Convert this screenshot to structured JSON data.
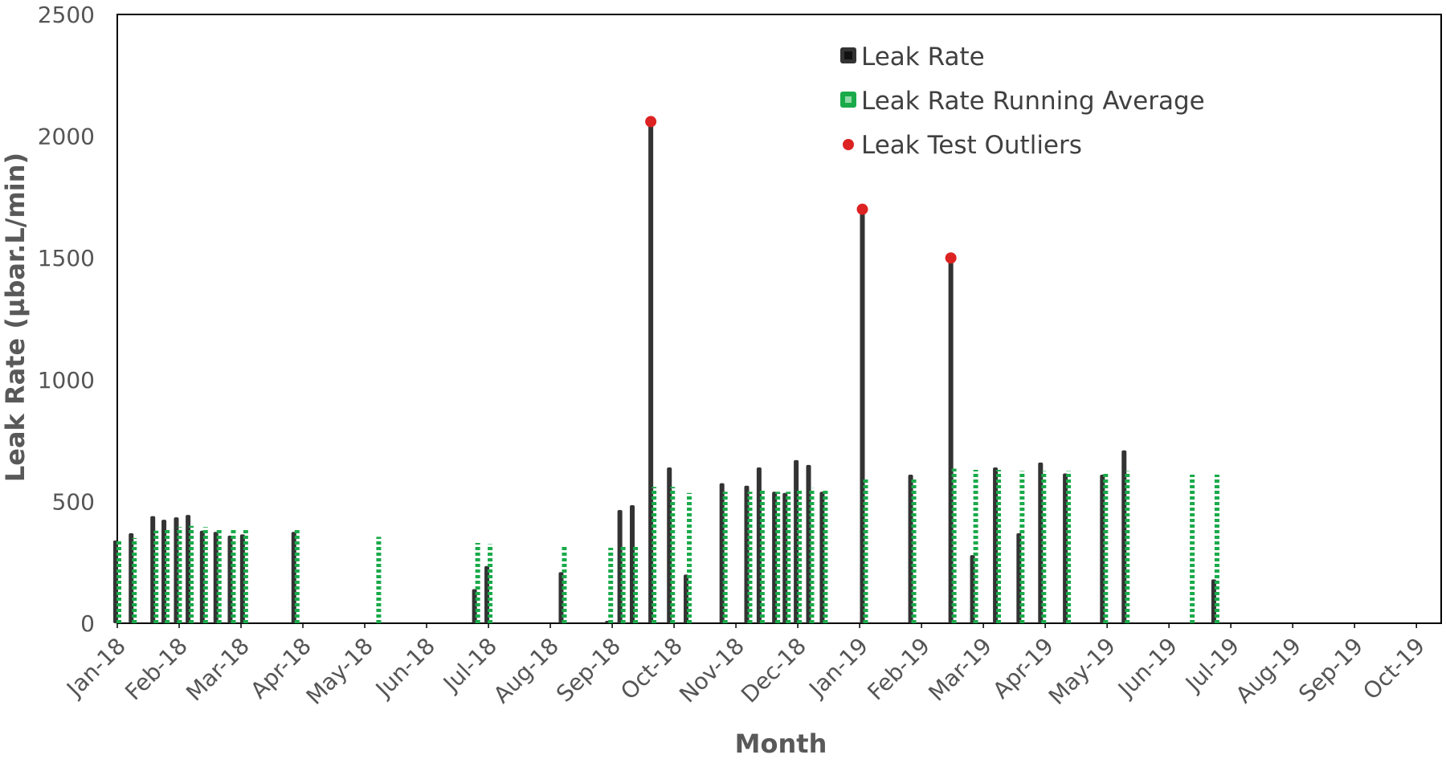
{
  "chart_data": {
    "type": "bar",
    "xlabel": "Month",
    "ylabel": "Leak Rate (µbar.L/min)",
    "ylim": [
      0,
      2500
    ],
    "yticks": [
      0,
      500,
      1000,
      1500,
      2000,
      2500
    ],
    "x_tick_labels": [
      "Jan-18",
      "Feb-18",
      "Mar-18",
      "Apr-18",
      "May-18",
      "Jun-18",
      "Jul-18",
      "Aug-18",
      "Sep-18",
      "Oct-18",
      "Nov-18",
      "Dec-18",
      "Jan-19",
      "Feb-19",
      "Mar-19",
      "Apr-19",
      "May-19",
      "Jun-19",
      "Jul-19",
      "Aug-19",
      "Sep-19",
      "Oct-19"
    ],
    "x_range": [
      0,
      21.4
    ],
    "grid": false,
    "legend_position": "top-right",
    "colors": {
      "leak_rate": "#333333",
      "running_average": "#1aaa4a",
      "outliers": "#dd2222"
    },
    "series": [
      {
        "name": "Leak Rate",
        "kind": "bar",
        "x": [
          0.0,
          0.25,
          0.6,
          0.78,
          0.98,
          1.17,
          1.4,
          1.62,
          1.85,
          2.05,
          2.88,
          4.2,
          5.8,
          6.0,
          7.2,
          7.95,
          8.15,
          8.35,
          8.65,
          8.95,
          9.22,
          9.8,
          10.2,
          10.4,
          10.65,
          10.82,
          11.0,
          11.2,
          11.42,
          12.07,
          12.85,
          13.5,
          13.85,
          14.22,
          14.6,
          14.95,
          15.35,
          15.95,
          16.3,
          17.35,
          17.75
        ],
        "values": [
          340,
          370,
          440,
          425,
          435,
          445,
          380,
          375,
          360,
          365,
          375,
          0,
          140,
          235,
          210,
          10,
          465,
          485,
          2060,
          640,
          200,
          575,
          565,
          640,
          540,
          535,
          670,
          650,
          540,
          1700,
          610,
          1500,
          280,
          640,
          370,
          660,
          615,
          610,
          710,
          0,
          180
        ]
      },
      {
        "name": "Leak Rate Running Average",
        "kind": "bar",
        "x": [
          0.0,
          0.25,
          0.6,
          0.78,
          0.98,
          1.17,
          1.4,
          1.62,
          1.85,
          2.05,
          2.88,
          4.2,
          5.8,
          6.0,
          7.2,
          7.95,
          8.15,
          8.35,
          8.65,
          8.95,
          9.22,
          9.8,
          10.2,
          10.4,
          10.65,
          10.82,
          11.0,
          11.2,
          11.42,
          12.07,
          12.85,
          13.5,
          13.85,
          14.22,
          14.6,
          14.95,
          15.35,
          15.95,
          16.3,
          17.35,
          17.75
        ],
        "values": [
          340,
          350,
          380,
          390,
          395,
          400,
          395,
          390,
          385,
          385,
          385,
          355,
          330,
          325,
          320,
          310,
          315,
          320,
          560,
          560,
          535,
          540,
          540,
          545,
          540,
          540,
          545,
          555,
          550,
          595,
          600,
          635,
          630,
          630,
          625,
          625,
          625,
          620,
          625,
          610,
          610
        ]
      },
      {
        "name": "Leak Test Outliers",
        "kind": "scatter",
        "x": [
          8.65,
          12.07,
          13.5
        ],
        "values": [
          2060,
          1700,
          1500
        ]
      }
    ]
  }
}
